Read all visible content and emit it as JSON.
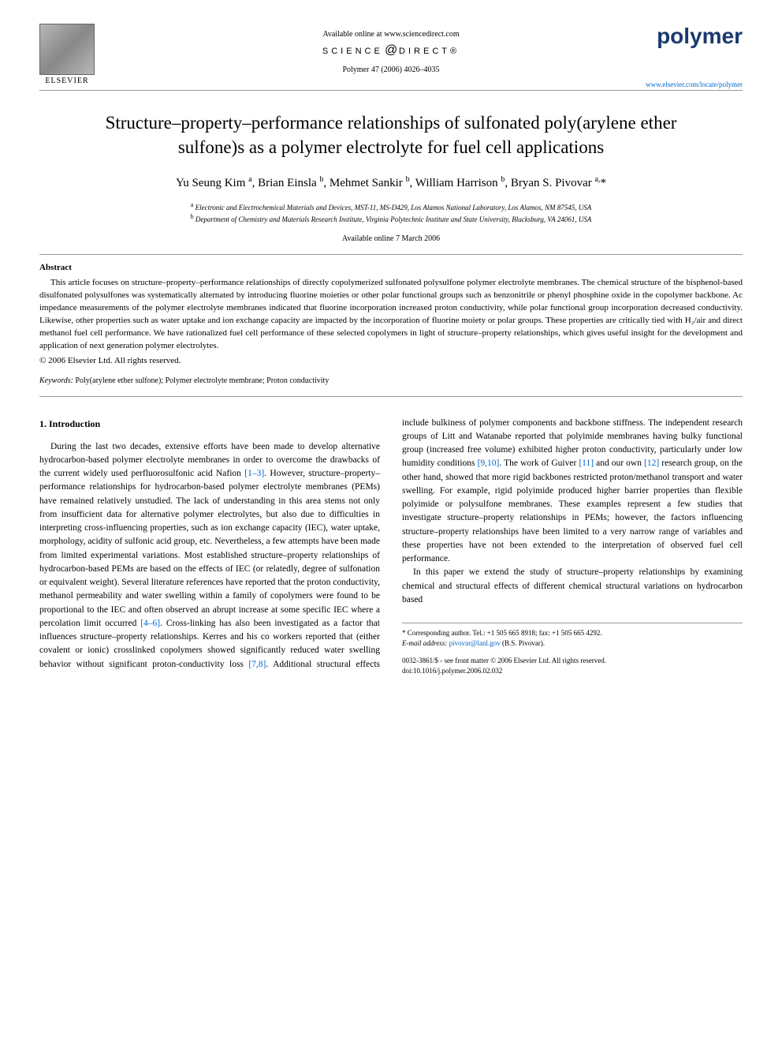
{
  "header": {
    "publisher_name": "ELSEVIER",
    "available_text": "Available online at www.sciencedirect.com",
    "sd_logo_left": "SCIENCE",
    "sd_logo_right": "DIRECT®",
    "citation": "Polymer 47 (2006) 4026–4035",
    "journal_name": "polymer",
    "journal_url": "www.elsevier.com/locate/polymer"
  },
  "title": "Structure–property–performance relationships of sulfonated poly(arylene ether sulfone)s as a polymer electrolyte for fuel cell applications",
  "authors_html": "Yu Seung Kim <sup>a</sup>, Brian Einsla <sup>b</sup>, Mehmet Sankir <sup>b</sup>, William Harrison <sup>b</sup>, Bryan S. Pivovar <sup>a,</sup>*",
  "affiliations": [
    {
      "sup": "a",
      "text": "Electronic and Electrochemical Materials and Devices, MST-11, MS-D429, Los Alamos National Laboratory, Los Alamos, NM 87545, USA"
    },
    {
      "sup": "b",
      "text": "Department of Chemistry and Materials Research Institute, Virginia Polytechnic Institute and State University, Blacksburg, VA 24061, USA"
    }
  ],
  "date_line": "Available online 7 March 2006",
  "abstract": {
    "heading": "Abstract",
    "text": "This article focuses on structure–property–performance relationships of directly copolymerized sulfonated polysulfone polymer electrolyte membranes. The chemical structure of the bisphenol-based disulfonated polysulfones was systematically alternated by introducing fluorine moieties or other polar functional groups such as benzonitrile or phenyl phosphine oxide in the copolymer backbone. Ac impedance measurements of the polymer electrolyte membranes indicated that fluorine incorporation increased proton conductivity, while polar functional group incorporation decreased conductivity. Likewise, other properties such as water uptake and ion exchange capacity are impacted by the incorporation of fluorine moiety or polar groups. These properties are critically tied with H₂/air and direct methanol fuel cell performance. We have rationalized fuel cell performance of these selected copolymers in light of structure–property relationships, which gives useful insight for the development and application of next generation polymer electrolytes.",
    "copyright": "© 2006 Elsevier Ltd. All rights reserved."
  },
  "keywords": {
    "label": "Keywords:",
    "text": "Poly(arylene ether sulfone); Polymer electrolyte membrane; Proton conductivity"
  },
  "intro": {
    "heading": "1. Introduction",
    "para1_pre": "During the last two decades, extensive efforts have been made to develop alternative hydrocarbon-based polymer electrolyte membranes in order to overcome the drawbacks of the current widely used perfluorosulfonic acid Nafion ",
    "ref1": "[1–3]",
    "para1_post": ". However, structure–property–performance relationships for hydrocarbon-based polymer electrolyte membranes (PEMs) have remained relatively unstudied. The lack of understanding in this area stems not only from insufficient data for alternative polymer electrolytes, but also due to difficulties in interpreting cross-influencing properties, such as ion exchange capacity (IEC), water uptake, morphology, acidity of sulfonic acid group, etc. Nevertheless, a few attempts have been made from limited experimental variations. Most established structure–property relationships of hydrocarbon-based PEMs are based on the effects of IEC (or relatedly, degree of sulfonation or equivalent weight). Several literature references have reported that the proton conductivity, methanol permeability and water swelling within a family of copolymers were found to be",
    "col2_a": "proportional to the IEC and often observed an abrupt increase at some specific IEC where a percolation limit occurred ",
    "ref2": "[4–6]",
    "col2_b": ". Cross-linking has also been investigated as a factor that influences structure–property relationships. Kerres and his co workers reported that (either covalent or ionic) crosslinked copolymers showed significantly reduced water swelling behavior without significant proton-conductivity loss ",
    "ref3": "[7,8]",
    "col2_c": ". Additional structural effects include bulkiness of polymer components and backbone stiffness. The independent research groups of Litt and Watanabe reported that polyimide membranes having bulky functional group (increased free volume) exhibited higher proton conductivity, particularly under low humidity conditions ",
    "ref4": "[9,10]",
    "col2_d": ". The work of Guiver ",
    "ref5": "[11]",
    "col2_e": " and our own ",
    "ref6": "[12]",
    "col2_f": " research group, on the other hand, showed that more rigid backbones restricted proton/methanol transport and water swelling. For example, rigid polyimide produced higher barrier properties than flexible polyimide or polysulfone membranes. These examples represent a few studies that investigate structure–property relationships in PEMs; however, the factors influencing structure–property relationships have been limited to a very narrow range of variables and these properties have not been extended to the interpretation of observed fuel cell performance.",
    "para2": "In this paper we extend the study of structure–property relationships by examining chemical and structural effects of different chemical structural variations on hydrocarbon based"
  },
  "footnote": {
    "corr": "* Corresponding author. Tel.: +1 505 665 8918; fax: +1 505 665 4292.",
    "email_label": "E-mail address:",
    "email": "pivovar@lanl.gov",
    "email_person": "(B.S. Pivovar)."
  },
  "footer": {
    "line1": "0032-3861/$ - see front matter © 2006 Elsevier Ltd. All rights reserved.",
    "line2": "doi:10.1016/j.polymer.2006.02.032"
  },
  "colors": {
    "link": "#0066cc",
    "journal": "#1a3a6e",
    "divider": "#999999"
  }
}
